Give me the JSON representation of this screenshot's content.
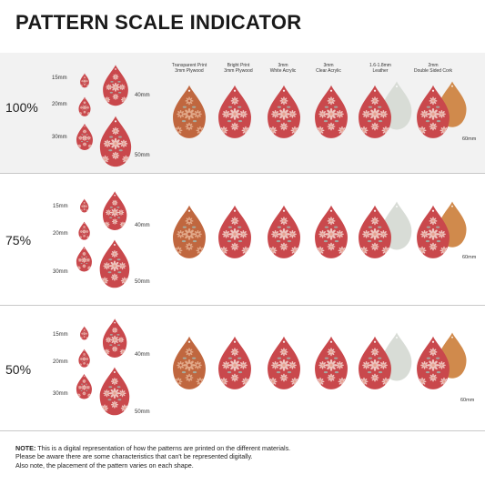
{
  "title": "PATTERN SCALE INDICATOR",
  "materials": [
    {
      "line1": "Transparent Print",
      "line2": "3mm Plywood"
    },
    {
      "line1": "Bright Print",
      "line2": "3mm Plywood"
    },
    {
      "line1": "3mm",
      "line2": "White Acrylic"
    },
    {
      "line1": "3mm",
      "line2": "Clear Acrylic"
    },
    {
      "line1": "1.6-1.8mm",
      "line2": "Leather"
    },
    {
      "line1": "2mm",
      "line2": "Double Sided Cork"
    }
  ],
  "sizes": [
    "15mm",
    "20mm",
    "30mm",
    "40mm",
    "50mm",
    "60mm"
  ],
  "scales": [
    "100%",
    "75%",
    "50%"
  ],
  "note": {
    "label": "NOTE:",
    "line1": " This is a digital representation of how the patterns are printed on the different materials.",
    "line2": "Please be aware there are some characteristics that can't be represented digitally.",
    "line3": "Also note, the placement of the pattern varies on each shape."
  },
  "colors": {
    "red": "#c9484c",
    "plywood": "#c0673f",
    "cork": "#d08a4c",
    "leather_back": "#d8dcd6",
    "flower": "#f3dbd2",
    "leaf": "#9fbfb8",
    "band": "#f2f2f2"
  }
}
